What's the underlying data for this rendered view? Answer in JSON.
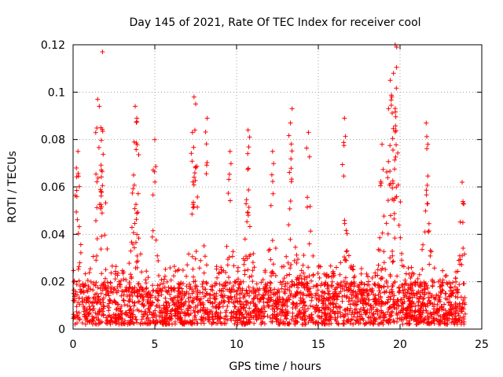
{
  "chart_data": {
    "type": "scatter",
    "title": "Day 145 of 2021, Rate Of TEC Index for receiver cool",
    "xlabel": "GPS time / hours",
    "ylabel": "ROTI / TECUs",
    "xlim": [
      0,
      25
    ],
    "ylim": [
      0,
      0.12
    ],
    "x_ticks": [
      0,
      5,
      10,
      15,
      20,
      25
    ],
    "x_tick_labels": [
      "0",
      "5",
      "10",
      "15",
      "20",
      "25"
    ],
    "y_ticks": [
      0,
      0.02,
      0.04,
      0.06,
      0.08,
      0.1,
      0.12
    ],
    "y_tick_labels": [
      "0",
      "0.02",
      "0.04",
      "0.06",
      "0.08",
      "0.1",
      "0.12"
    ],
    "grid": true,
    "marker": "+",
    "series_color": "#ff0000",
    "series": [
      {
        "name": "ROTI",
        "x_range": [
          0,
          24
        ],
        "baseline_range": [
          0.002,
          0.02
        ],
        "typical_max": 0.045,
        "peaks": [
          {
            "x": 0.3,
            "y": 0.075
          },
          {
            "x": 0.2,
            "y": 0.068
          },
          {
            "x": 1.5,
            "y": 0.097
          },
          {
            "x": 1.6,
            "y": 0.094
          },
          {
            "x": 1.8,
            "y": 0.117
          },
          {
            "x": 1.7,
            "y": 0.085
          },
          {
            "x": 3.8,
            "y": 0.094
          },
          {
            "x": 3.9,
            "y": 0.089
          },
          {
            "x": 3.7,
            "y": 0.065
          },
          {
            "x": 5.0,
            "y": 0.08
          },
          {
            "x": 7.4,
            "y": 0.098
          },
          {
            "x": 7.5,
            "y": 0.095
          },
          {
            "x": 7.3,
            "y": 0.083
          },
          {
            "x": 8.2,
            "y": 0.089
          },
          {
            "x": 9.6,
            "y": 0.075
          },
          {
            "x": 10.7,
            "y": 0.084
          },
          {
            "x": 10.8,
            "y": 0.081
          },
          {
            "x": 12.2,
            "y": 0.075
          },
          {
            "x": 13.4,
            "y": 0.093
          },
          {
            "x": 13.3,
            "y": 0.087
          },
          {
            "x": 14.4,
            "y": 0.083
          },
          {
            "x": 16.6,
            "y": 0.089
          },
          {
            "x": 19.4,
            "y": 0.105
          },
          {
            "x": 19.5,
            "y": 0.098
          },
          {
            "x": 19.6,
            "y": 0.108
          },
          {
            "x": 19.7,
            "y": 0.12
          },
          {
            "x": 19.8,
            "y": 0.119
          },
          {
            "x": 19.3,
            "y": 0.093
          },
          {
            "x": 18.9,
            "y": 0.078
          },
          {
            "x": 21.6,
            "y": 0.087
          },
          {
            "x": 21.7,
            "y": 0.078
          },
          {
            "x": 23.8,
            "y": 0.062
          }
        ]
      }
    ]
  }
}
